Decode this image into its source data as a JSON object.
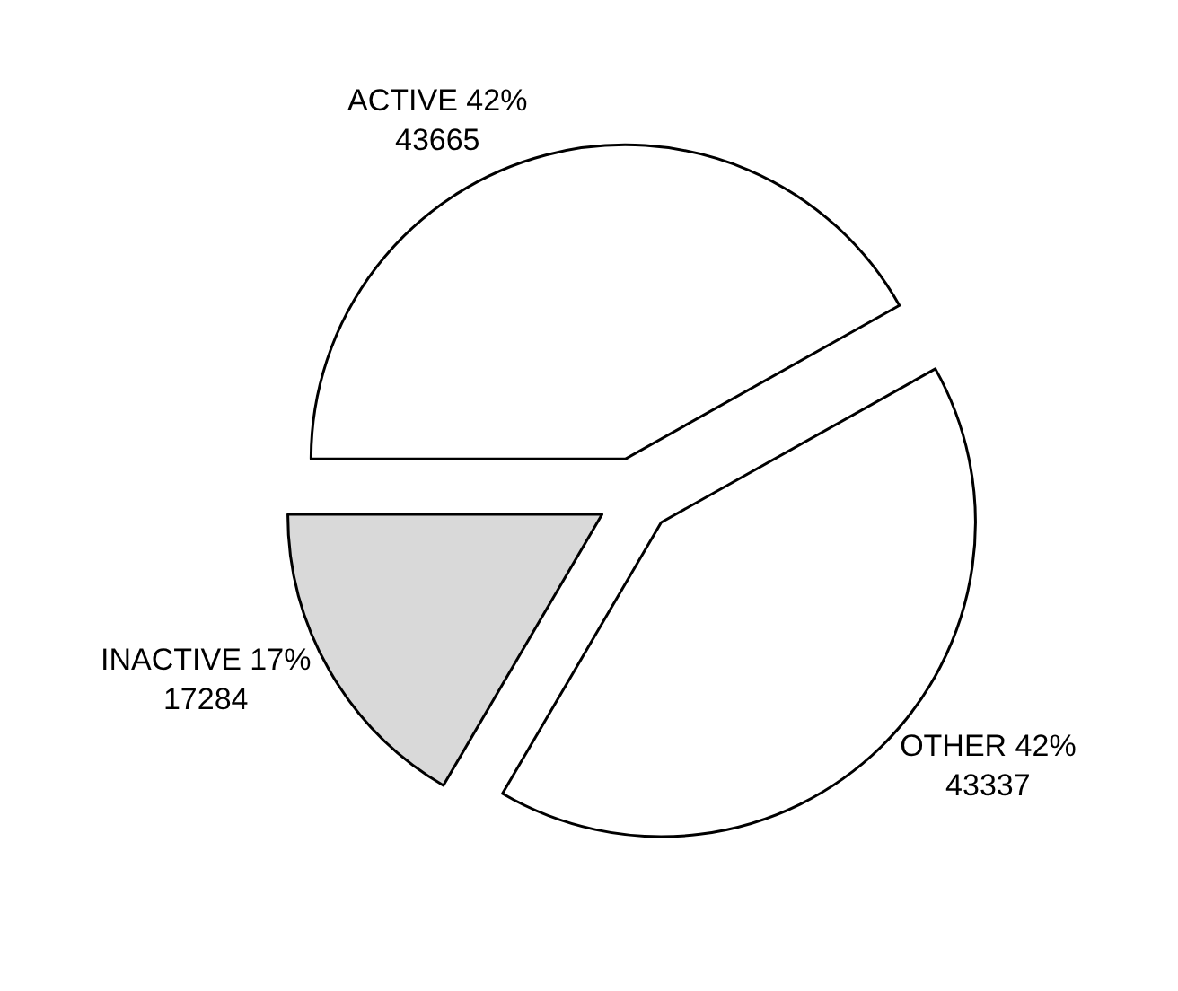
{
  "chart_data": {
    "type": "pie",
    "categories": [
      "ACTIVE",
      "INACTIVE",
      "OTHER"
    ],
    "values": [
      43665,
      17284,
      43337
    ],
    "value_labels": [
      "42%\n43665",
      "17%\n17284",
      "42%\n43337"
    ],
    "colors": [
      "#ffffff",
      "#d9d9d9",
      "#ffffff"
    ],
    "legend": false
  }
}
